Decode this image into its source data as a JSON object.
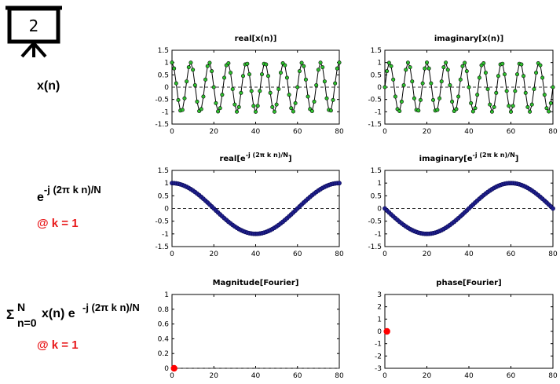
{
  "board": {
    "number": "2"
  },
  "labels": {
    "xn": "x(n)",
    "exp_base": "e",
    "exp_sup": "-j (2π k n)/N",
    "at_k1": "@ k = 1",
    "sum_sigma": "Σ",
    "sum_top": "N",
    "sum_bottom": "n=0",
    "sum_body": "x(n) e",
    "sum_sup": "-j (2π k n)/N",
    "at_k2": "@ k = 1"
  },
  "colors": {
    "green_marker": "#2ec02e",
    "blue_marker": "#1e1e8c",
    "red_point": "#ff0000",
    "red_text": "#e8191b"
  },
  "chart_data": [
    {
      "type": "line",
      "title": "real[x(n)]",
      "xlim": [
        0,
        80
      ],
      "ylim": [
        -1.5,
        1.5
      ],
      "xticks": [
        0,
        20,
        40,
        60,
        80
      ],
      "yticks": [
        -1.5,
        -1,
        -0.5,
        0,
        0.5,
        1,
        1.5
      ],
      "n_points": 81,
      "series": [
        {
          "function": "cos(2*pi*9*n/80)",
          "marker": "circle",
          "marker_color": "#2ec02e"
        }
      ],
      "zero_line": "dashed"
    },
    {
      "type": "line",
      "title": "imaginary[x(n)]",
      "xlim": [
        0,
        80
      ],
      "ylim": [
        -1.5,
        1.5
      ],
      "xticks": [
        0,
        20,
        40,
        60,
        80
      ],
      "yticks": [
        -1.5,
        -1,
        -0.5,
        0,
        0.5,
        1,
        1.5
      ],
      "n_points": 81,
      "series": [
        {
          "function": "sin(2*pi*9*n/80)",
          "marker": "circle",
          "marker_color": "#2ec02e"
        }
      ],
      "zero_line": "dashed"
    },
    {
      "type": "line",
      "title": "real[e^{-j (2π k n)/N}]",
      "title_base": "real[e",
      "title_sup": "-j (2π k n)/N",
      "title_end": "]",
      "xlim": [
        0,
        80
      ],
      "ylim": [
        -1.5,
        1.5
      ],
      "xticks": [
        0,
        20,
        40,
        60,
        80
      ],
      "yticks": [
        -1.5,
        -1,
        -0.5,
        0,
        0.5,
        1,
        1.5
      ],
      "n_points": 81,
      "series": [
        {
          "function": "cos(2*pi*n/80)",
          "marker": "circle",
          "marker_color": "#1e1e8c"
        }
      ],
      "zero_line": "dashed"
    },
    {
      "type": "line",
      "title": "imaginary[e^{-j (2π k n)/N}]",
      "title_base": "imaginary[e",
      "title_sup": "-j (2π k n)/N",
      "title_end": "]",
      "xlim": [
        0,
        80
      ],
      "ylim": [
        -1.5,
        1.5
      ],
      "xticks": [
        0,
        20,
        40,
        60,
        80
      ],
      "yticks": [
        -1.5,
        -1,
        -0.5,
        0,
        0.5,
        1,
        1.5
      ],
      "n_points": 81,
      "series": [
        {
          "function": "-sin(2*pi*n/80)",
          "marker": "circle",
          "marker_color": "#1e1e8c"
        }
      ],
      "zero_line": "dashed"
    },
    {
      "type": "scatter",
      "title": "Magnitude[Fourier]",
      "xlim": [
        0,
        80
      ],
      "ylim": [
        0,
        1
      ],
      "xticks": [
        0,
        20,
        40,
        60,
        80
      ],
      "yticks": [
        0,
        0.2,
        0.4,
        0.6,
        0.8,
        1
      ],
      "points": [
        {
          "x": 1,
          "y": 0
        }
      ],
      "zero_line": "dashed"
    },
    {
      "type": "scatter",
      "title": "phase[Fourier]",
      "xlim": [
        0,
        80
      ],
      "ylim": [
        -3,
        3
      ],
      "xticks": [
        0,
        20,
        40,
        60,
        80
      ],
      "yticks": [
        -3,
        -2,
        -1,
        0,
        1,
        2,
        3
      ],
      "points": [
        {
          "x": 1,
          "y": 0
        }
      ],
      "zero_line": "none"
    }
  ]
}
